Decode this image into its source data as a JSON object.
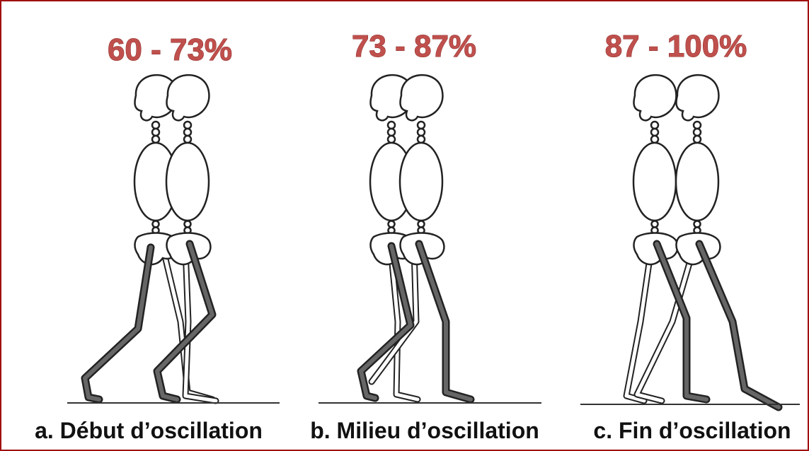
{
  "panels": [
    {
      "range": "60 - 73%",
      "caption": "a. Début d’oscillation"
    },
    {
      "range": "73 - 87%",
      "caption": "b. Milieu d’oscillation"
    },
    {
      "range": "87 - 100%",
      "caption": "c. Fin d’oscillation"
    }
  ]
}
